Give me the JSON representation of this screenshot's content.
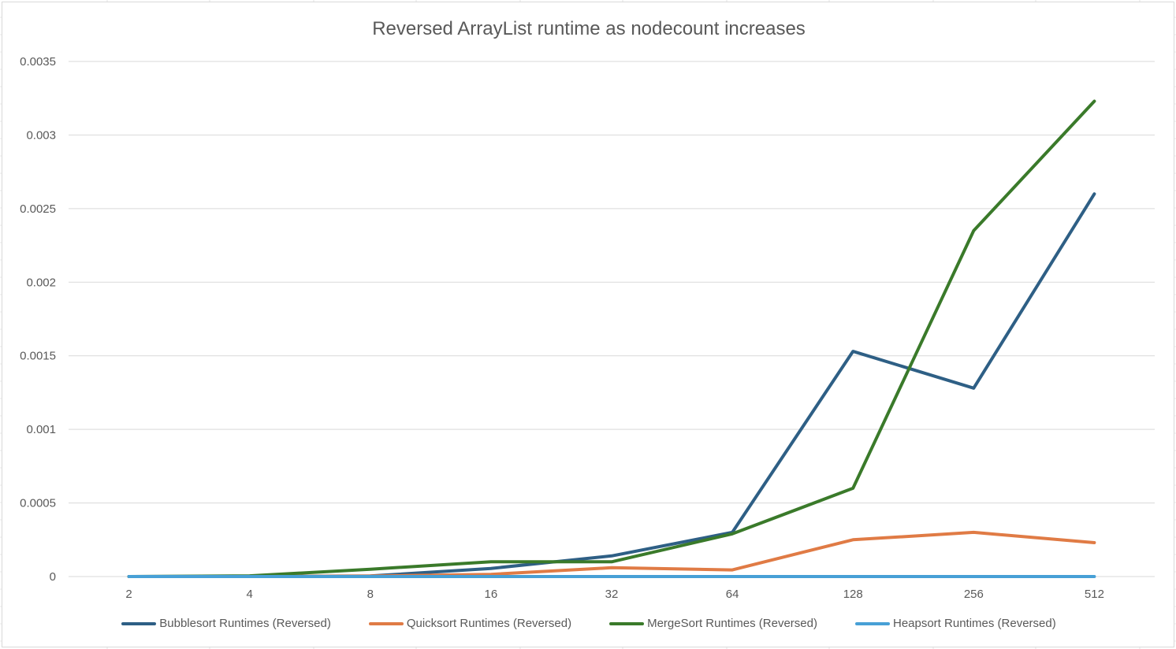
{
  "chart_data": {
    "type": "line",
    "title": "Reversed ArrayList runtime as nodecount increases",
    "categories": [
      "2",
      "4",
      "8",
      "16",
      "32",
      "64",
      "128",
      "256",
      "512"
    ],
    "ylim": [
      0,
      0.0035
    ],
    "yticks": [
      "0",
      "0.0005",
      "0.001",
      "0.0015",
      "0.002",
      "0.0025",
      "0.003",
      "0.0035"
    ],
    "ytick_values": [
      0,
      0.0005,
      0.001,
      0.0015,
      0.002,
      0.0025,
      0.003,
      0.0035
    ],
    "grid": true,
    "legend": "bottom",
    "series": [
      {
        "name": "Bubblesort Runtimes (Reversed)",
        "color": "#2e5f85",
        "values": [
          2e-07,
          1e-06,
          3.5e-06,
          5.5e-05,
          0.00014,
          0.0003,
          0.00153,
          0.00128,
          0.0026
        ]
      },
      {
        "name": "Quicksort Runtimes (Reversed)",
        "color": "#e07b45",
        "values": [
          1e-07,
          5e-07,
          3e-06,
          1.5e-05,
          6e-05,
          4.5e-05,
          0.00025,
          0.0003,
          0.00023
        ]
      },
      {
        "name": "MergeSort Runtimes (Reversed)",
        "color": "#3a7a2a",
        "values": [
          1e-07,
          5e-06,
          5e-05,
          0.0001,
          0.0001,
          0.00029,
          0.0006,
          0.00235,
          0.00323
        ]
      },
      {
        "name": "Heapsort Runtimes (Reversed)",
        "color": "#47a0d6",
        "values": [
          1e-07,
          1e-07,
          1e-07,
          1e-07,
          1e-07,
          1e-07,
          1e-07,
          1e-07,
          1e-07
        ]
      }
    ]
  }
}
